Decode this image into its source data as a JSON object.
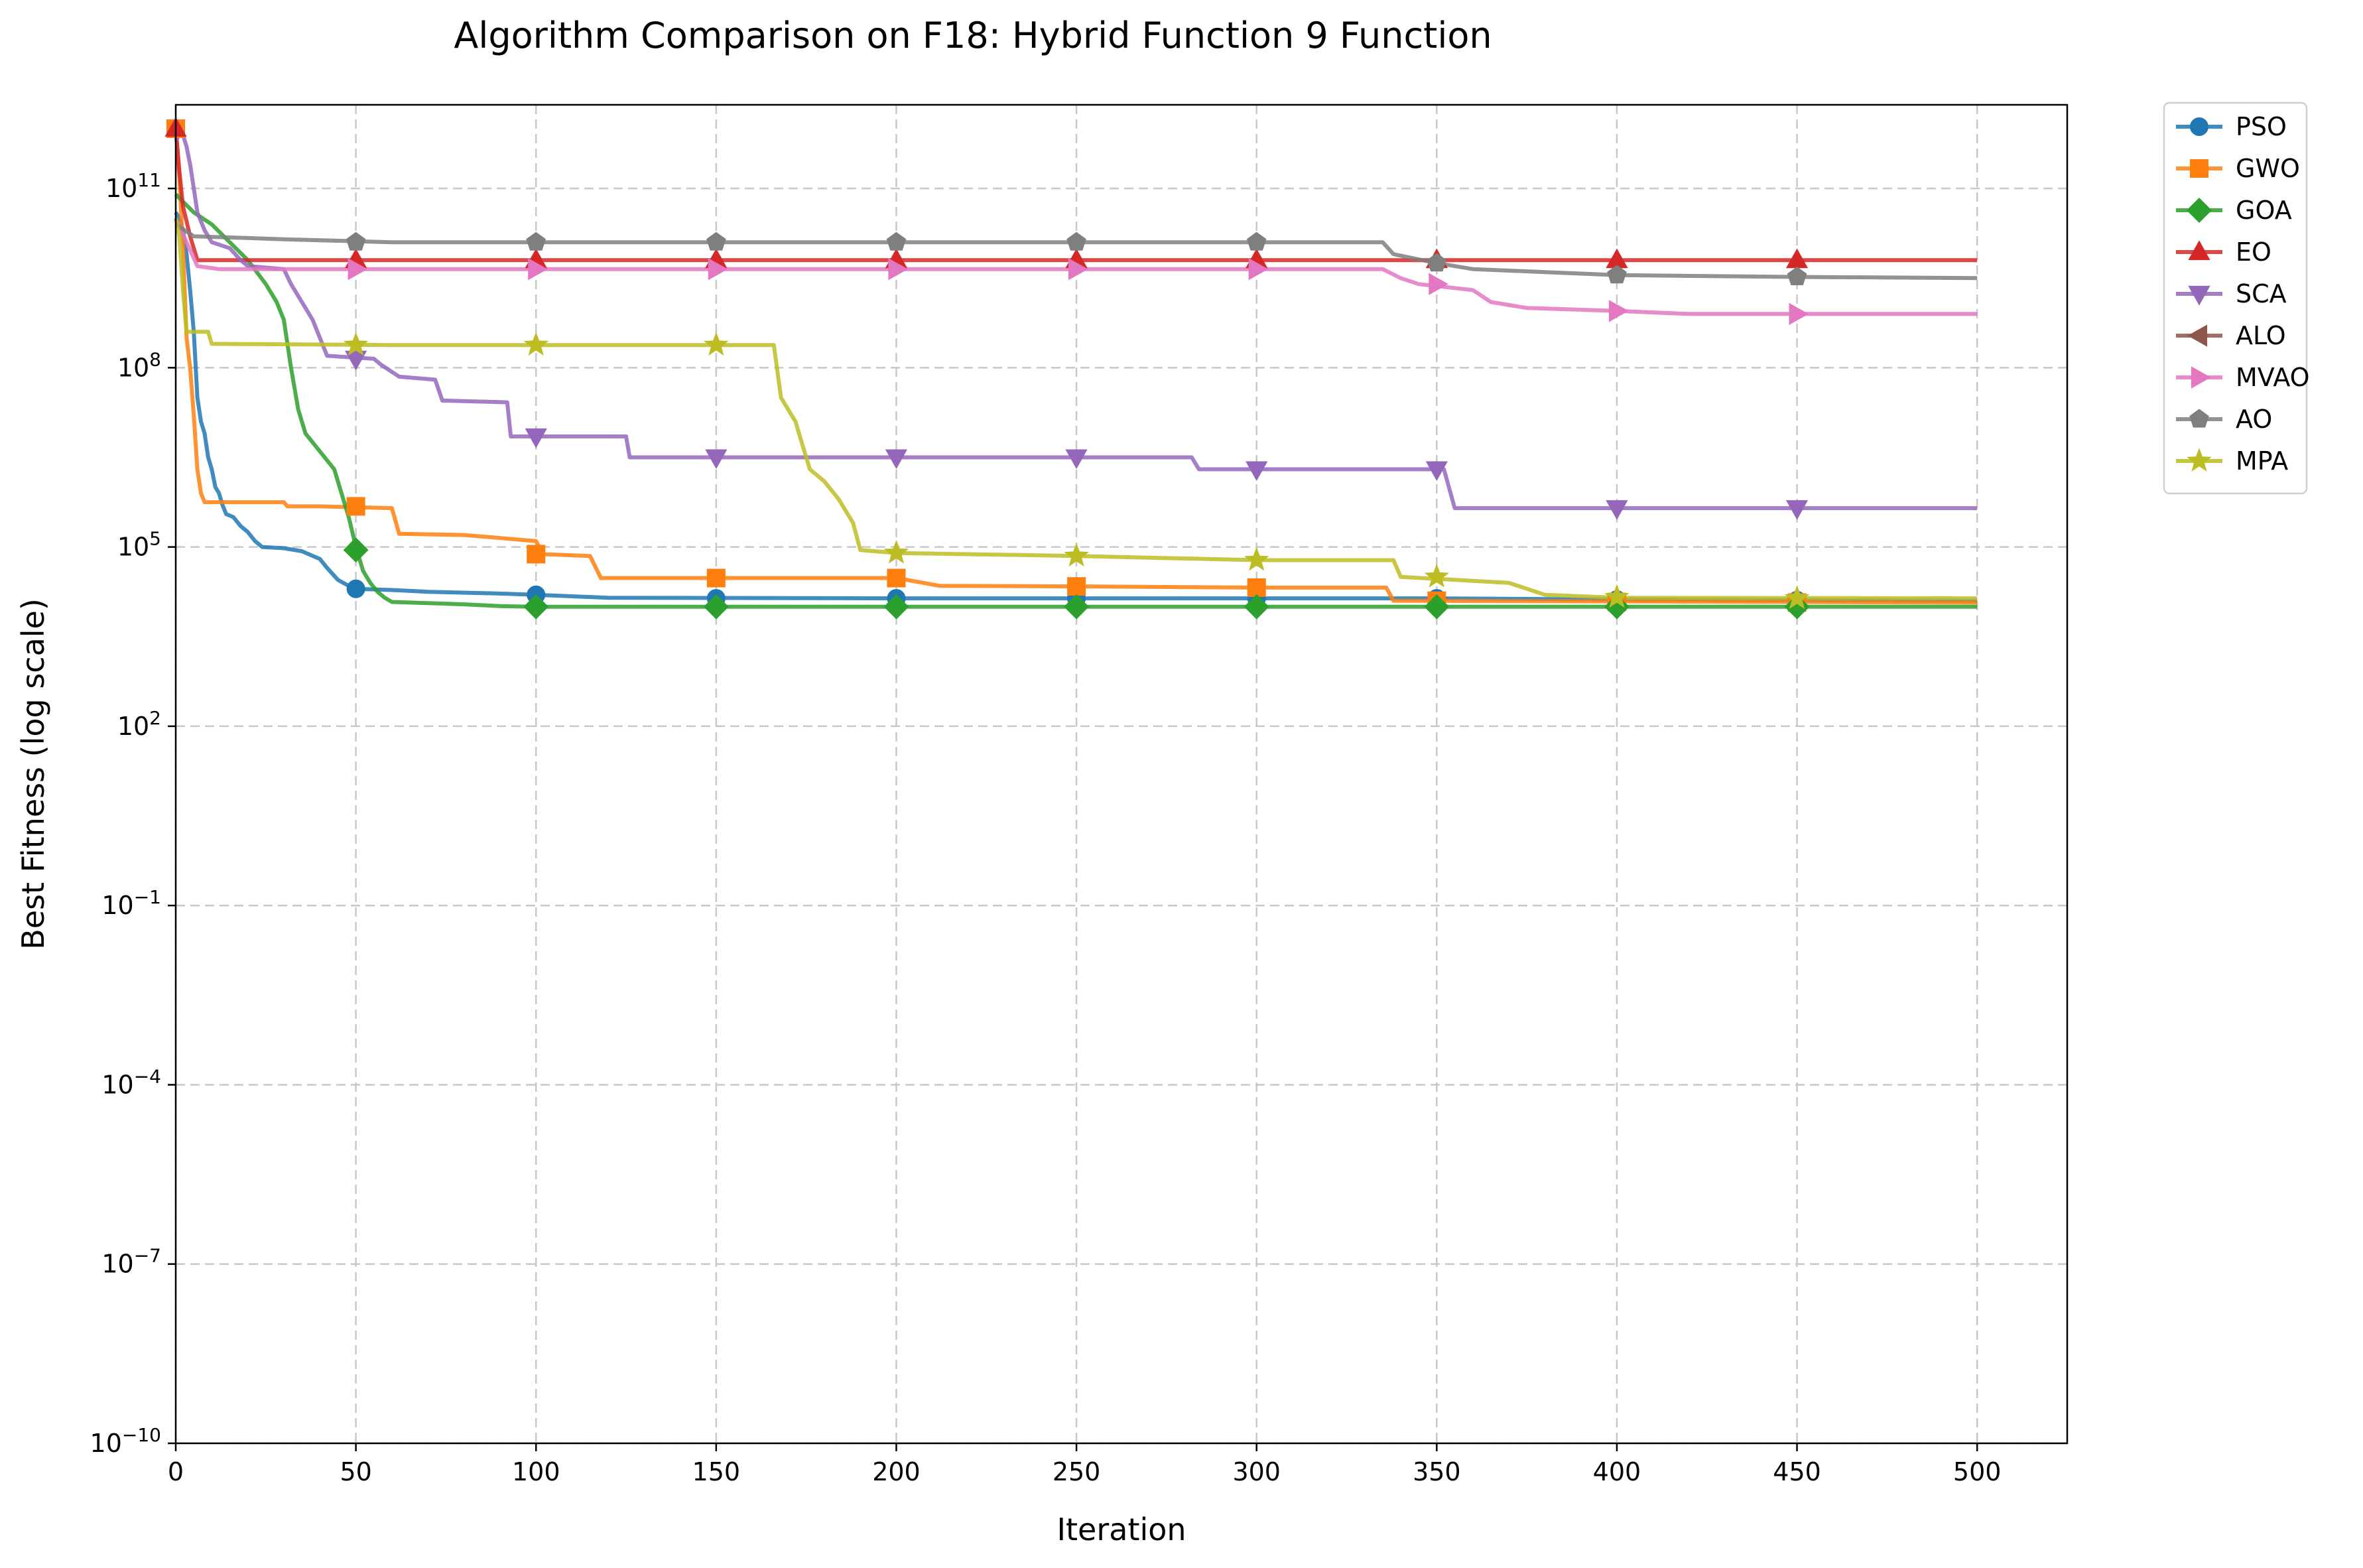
{
  "chart_data": {
    "type": "line",
    "title": "Algorithm Comparison on F18: Hybrid Function 9 Function",
    "xlabel": "Iteration",
    "ylabel": "Best Fitness (log scale)",
    "x_scale": "linear",
    "y_scale": "log",
    "xlim": [
      0,
      525
    ],
    "ylim_log10": [
      -10,
      12.4
    ],
    "grid": true,
    "legend_placement": "outside-right",
    "x_ticks": [
      0,
      50,
      100,
      150,
      200,
      250,
      300,
      350,
      400,
      450,
      500
    ],
    "x_tick_labels": [
      "0",
      "50",
      "100",
      "150",
      "200",
      "250",
      "300",
      "350",
      "400",
      "450",
      "500"
    ],
    "y_tick_exponents": [
      -10,
      -7,
      -4,
      -1,
      2,
      5,
      8,
      11
    ],
    "y_tick_base": "10",
    "series": [
      {
        "name": "PSO",
        "color": "#1f77b4",
        "marker": "circle",
        "points": [
          [
            0,
            10.6
          ],
          [
            1,
            10.5
          ],
          [
            2,
            10.3
          ],
          [
            3,
            9.9
          ],
          [
            4,
            9.3
          ],
          [
            5,
            8.6
          ],
          [
            6,
            7.5
          ],
          [
            7,
            7.1
          ],
          [
            8,
            6.9
          ],
          [
            9,
            6.5
          ],
          [
            10,
            6.3
          ],
          [
            11,
            6.0
          ],
          [
            12,
            5.9
          ],
          [
            13,
            5.7
          ],
          [
            14,
            5.55
          ],
          [
            16,
            5.5
          ],
          [
            18,
            5.35
          ],
          [
            20,
            5.25
          ],
          [
            22,
            5.1
          ],
          [
            24,
            5.0
          ],
          [
            30,
            4.98
          ],
          [
            35,
            4.93
          ],
          [
            40,
            4.8
          ],
          [
            42,
            4.65
          ],
          [
            45,
            4.45
          ],
          [
            48,
            4.35
          ],
          [
            50,
            4.3
          ],
          [
            60,
            4.28
          ],
          [
            70,
            4.25
          ],
          [
            90,
            4.22
          ],
          [
            100,
            4.2
          ],
          [
            120,
            4.15
          ],
          [
            200,
            4.14
          ],
          [
            350,
            4.14
          ],
          [
            400,
            4.12
          ],
          [
            500,
            4.1
          ]
        ],
        "markers": [
          [
            50,
            4.3
          ],
          [
            100,
            4.2
          ],
          [
            150,
            4.14
          ],
          [
            200,
            4.14
          ],
          [
            250,
            4.14
          ],
          [
            300,
            4.14
          ],
          [
            350,
            4.14
          ],
          [
            400,
            4.12
          ],
          [
            450,
            4.11
          ]
        ]
      },
      {
        "name": "GWO",
        "color": "#ff7f0e",
        "marker": "square",
        "points": [
          [
            0,
            12.0
          ],
          [
            1,
            11.2
          ],
          [
            2,
            10.0
          ],
          [
            3,
            8.5
          ],
          [
            4,
            8.0
          ],
          [
            5,
            7.2
          ],
          [
            6,
            6.3
          ],
          [
            7,
            5.9
          ],
          [
            8,
            5.75
          ],
          [
            30,
            5.75
          ],
          [
            31,
            5.68
          ],
          [
            40,
            5.68
          ],
          [
            60,
            5.65
          ],
          [
            62,
            5.22
          ],
          [
            80,
            5.2
          ],
          [
            100,
            5.1
          ],
          [
            102,
            4.88
          ],
          [
            115,
            4.85
          ],
          [
            118,
            4.48
          ],
          [
            200,
            4.48
          ],
          [
            212,
            4.35
          ],
          [
            250,
            4.34
          ],
          [
            300,
            4.32
          ],
          [
            336,
            4.32
          ],
          [
            338,
            4.1
          ],
          [
            500,
            4.07
          ]
        ],
        "markers": [
          [
            0,
            12.0
          ],
          [
            50,
            5.68
          ],
          [
            100,
            4.88
          ],
          [
            150,
            4.48
          ],
          [
            200,
            4.48
          ],
          [
            250,
            4.34
          ],
          [
            300,
            4.32
          ],
          [
            350,
            4.1
          ],
          [
            400,
            4.08
          ],
          [
            450,
            4.07
          ]
        ]
      },
      {
        "name": "GOA",
        "color": "#2ca02c",
        "marker": "diamond",
        "points": [
          [
            0,
            10.9
          ],
          [
            5,
            10.6
          ],
          [
            10,
            10.4
          ],
          [
            15,
            10.1
          ],
          [
            20,
            9.8
          ],
          [
            25,
            9.4
          ],
          [
            28,
            9.1
          ],
          [
            30,
            8.8
          ],
          [
            32,
            8.0
          ],
          [
            34,
            7.3
          ],
          [
            36,
            6.9
          ],
          [
            40,
            6.6
          ],
          [
            44,
            6.3
          ],
          [
            46,
            5.9
          ],
          [
            48,
            5.5
          ],
          [
            50,
            5.0
          ],
          [
            52,
            4.6
          ],
          [
            54,
            4.4
          ],
          [
            56,
            4.25
          ],
          [
            58,
            4.15
          ],
          [
            60,
            4.08
          ],
          [
            70,
            4.06
          ],
          [
            80,
            4.04
          ],
          [
            90,
            4.01
          ],
          [
            100,
            4.0
          ],
          [
            500,
            4.0
          ]
        ],
        "markers": [
          [
            50,
            4.95
          ],
          [
            100,
            4.0
          ],
          [
            150,
            4.0
          ],
          [
            200,
            4.0
          ],
          [
            250,
            4.0
          ],
          [
            300,
            4.0
          ],
          [
            350,
            4.0
          ],
          [
            400,
            4.0
          ],
          [
            450,
            4.0
          ]
        ]
      },
      {
        "name": "EO",
        "color": "#d62728",
        "marker": "triangle-up",
        "points": [
          [
            0,
            12.0
          ],
          [
            1,
            11.3
          ],
          [
            2,
            10.7
          ],
          [
            4,
            10.2
          ],
          [
            6,
            9.8
          ],
          [
            500,
            9.8
          ]
        ],
        "markers": [
          [
            0,
            12.0
          ],
          [
            50,
            9.8
          ],
          [
            100,
            9.8
          ],
          [
            150,
            9.8
          ],
          [
            200,
            9.8
          ],
          [
            250,
            9.8
          ],
          [
            300,
            9.8
          ],
          [
            350,
            9.8
          ],
          [
            400,
            9.8
          ],
          [
            450,
            9.8
          ]
        ]
      },
      {
        "name": "SCA",
        "color": "#9467bd",
        "marker": "triangle-down",
        "points": [
          [
            0,
            11.8
          ],
          [
            1,
            11.9
          ],
          [
            2,
            11.9
          ],
          [
            3,
            11.7
          ],
          [
            4,
            11.4
          ],
          [
            5,
            11.0
          ],
          [
            6,
            10.6
          ],
          [
            8,
            10.3
          ],
          [
            10,
            10.1
          ],
          [
            15,
            10.0
          ],
          [
            18,
            9.8
          ],
          [
            20,
            9.7
          ],
          [
            30,
            9.65
          ],
          [
            32,
            9.4
          ],
          [
            34,
            9.2
          ],
          [
            36,
            9.0
          ],
          [
            38,
            8.8
          ],
          [
            40,
            8.5
          ],
          [
            42,
            8.2
          ],
          [
            55,
            8.15
          ],
          [
            57,
            8.05
          ],
          [
            62,
            7.85
          ],
          [
            72,
            7.8
          ],
          [
            74,
            7.45
          ],
          [
            92,
            7.42
          ],
          [
            93,
            6.85
          ],
          [
            125,
            6.85
          ],
          [
            126,
            6.5
          ],
          [
            282,
            6.5
          ],
          [
            284,
            6.3
          ],
          [
            352,
            6.3
          ],
          [
            355,
            5.65
          ],
          [
            500,
            5.65
          ]
        ],
        "markers": [
          [
            50,
            8.15
          ],
          [
            100,
            6.85
          ],
          [
            150,
            6.5
          ],
          [
            200,
            6.5
          ],
          [
            250,
            6.5
          ],
          [
            300,
            6.3
          ],
          [
            350,
            6.3
          ],
          [
            400,
            5.65
          ],
          [
            450,
            5.65
          ]
        ]
      },
      {
        "name": "ALO",
        "color": "#8c564b",
        "marker": "triangle-left",
        "points": [],
        "markers": []
      },
      {
        "name": "MVAO",
        "color": "#e377c2",
        "marker": "triangle-right",
        "points": [
          [
            0,
            10.5
          ],
          [
            3,
            10.1
          ],
          [
            6,
            9.7
          ],
          [
            12,
            9.65
          ],
          [
            335,
            9.65
          ],
          [
            340,
            9.5
          ],
          [
            345,
            9.4
          ],
          [
            360,
            9.3
          ],
          [
            365,
            9.1
          ],
          [
            375,
            9.0
          ],
          [
            400,
            8.95
          ],
          [
            420,
            8.9
          ],
          [
            500,
            8.9
          ]
        ],
        "markers": [
          [
            50,
            9.65
          ],
          [
            100,
            9.65
          ],
          [
            150,
            9.65
          ],
          [
            200,
            9.65
          ],
          [
            250,
            9.65
          ],
          [
            300,
            9.65
          ],
          [
            350,
            9.4
          ],
          [
            400,
            8.95
          ],
          [
            450,
            8.9
          ]
        ]
      },
      {
        "name": "AO",
        "color": "#7f7f7f",
        "marker": "pentagon",
        "points": [
          [
            0,
            10.4
          ],
          [
            5,
            10.2
          ],
          [
            30,
            10.15
          ],
          [
            60,
            10.1
          ],
          [
            335,
            10.1
          ],
          [
            338,
            9.9
          ],
          [
            350,
            9.75
          ],
          [
            360,
            9.65
          ],
          [
            380,
            9.6
          ],
          [
            400,
            9.55
          ],
          [
            450,
            9.52
          ],
          [
            500,
            9.5
          ]
        ],
        "markers": [
          [
            50,
            10.1
          ],
          [
            100,
            10.1
          ],
          [
            150,
            10.1
          ],
          [
            200,
            10.1
          ],
          [
            250,
            10.1
          ],
          [
            300,
            10.1
          ],
          [
            350,
            9.75
          ],
          [
            400,
            9.55
          ],
          [
            450,
            9.52
          ]
        ]
      },
      {
        "name": "MPA",
        "color": "#bcbd22",
        "marker": "star",
        "points": [
          [
            0,
            10.5
          ],
          [
            1,
            10.2
          ],
          [
            2,
            9.3
          ],
          [
            3,
            8.6
          ],
          [
            9,
            8.6
          ],
          [
            10,
            8.4
          ],
          [
            60,
            8.38
          ],
          [
            166,
            8.38
          ],
          [
            168,
            7.5
          ],
          [
            170,
            7.3
          ],
          [
            172,
            7.1
          ],
          [
            174,
            6.7
          ],
          [
            176,
            6.3
          ],
          [
            180,
            6.1
          ],
          [
            184,
            5.8
          ],
          [
            188,
            5.4
          ],
          [
            190,
            4.95
          ],
          [
            200,
            4.9
          ],
          [
            250,
            4.85
          ],
          [
            300,
            4.78
          ],
          [
            338,
            4.78
          ],
          [
            340,
            4.5
          ],
          [
            370,
            4.4
          ],
          [
            380,
            4.2
          ],
          [
            400,
            4.15
          ],
          [
            500,
            4.14
          ]
        ],
        "markers": [
          [
            50,
            8.38
          ],
          [
            100,
            8.38
          ],
          [
            150,
            8.38
          ],
          [
            200,
            4.9
          ],
          [
            250,
            4.85
          ],
          [
            300,
            4.78
          ],
          [
            350,
            4.5
          ],
          [
            400,
            4.16
          ],
          [
            450,
            4.14
          ]
        ]
      }
    ]
  }
}
